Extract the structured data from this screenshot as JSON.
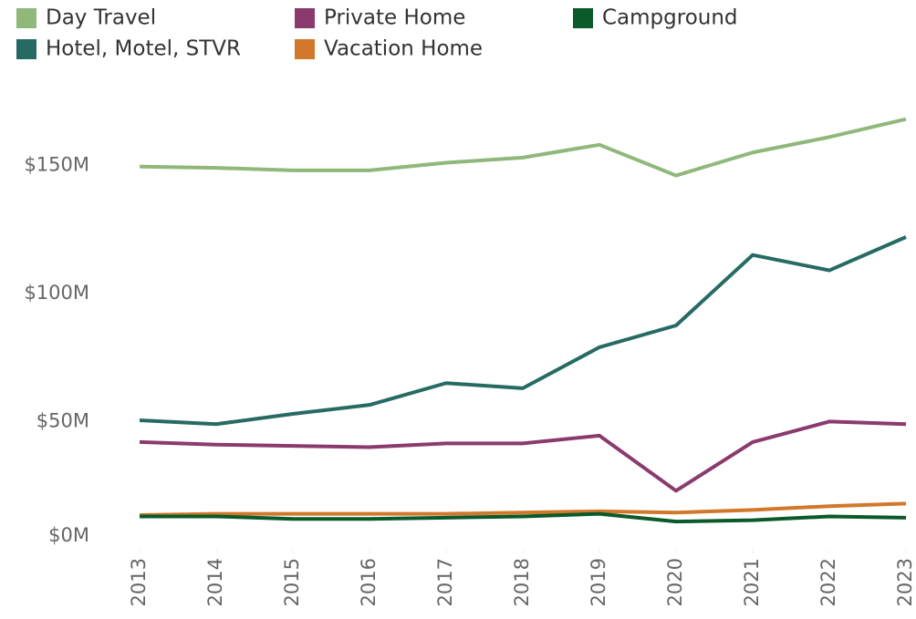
{
  "chart_data": {
    "type": "line",
    "categories": [
      "2013",
      "2014",
      "2015",
      "2016",
      "2017",
      "2018",
      "2019",
      "2020",
      "2021",
      "2022",
      "2023"
    ],
    "series": [
      {
        "name": "Day Travel",
        "color": "#8fb87a",
        "values": [
          149.5,
          149,
          148,
          148,
          151,
          153,
          158,
          146,
          155,
          161,
          168
        ]
      },
      {
        "name": "Hotel, Motel, STVR",
        "color": "#266b63",
        "values": [
          50.5,
          49,
          53,
          56.5,
          65,
          63,
          79,
          87.5,
          115,
          109,
          122
        ]
      },
      {
        "name": "Private Home",
        "color": "#8b3a6e",
        "values": [
          42,
          41,
          40.5,
          40,
          41.5,
          41.5,
          44.5,
          23,
          42,
          50,
          49
        ]
      },
      {
        "name": "Vacation Home",
        "color": "#d2782a",
        "values": [
          13.5,
          14,
          14,
          14,
          14,
          14.5,
          15,
          14.5,
          15.5,
          17,
          18
        ]
      },
      {
        "name": "Campground",
        "color": "#0a5a2a",
        "values": [
          13,
          13,
          12,
          12,
          12.5,
          13,
          14,
          11,
          11.5,
          13,
          12.5
        ]
      }
    ],
    "ylim": [
      0,
      175
    ],
    "yticks": [
      {
        "value": 0,
        "label": "$0M"
      },
      {
        "value": 50,
        "label": "$50M"
      },
      {
        "value": 100,
        "label": "$100M"
      },
      {
        "value": 150,
        "label": "$150M"
      }
    ],
    "legend": "top-left"
  }
}
